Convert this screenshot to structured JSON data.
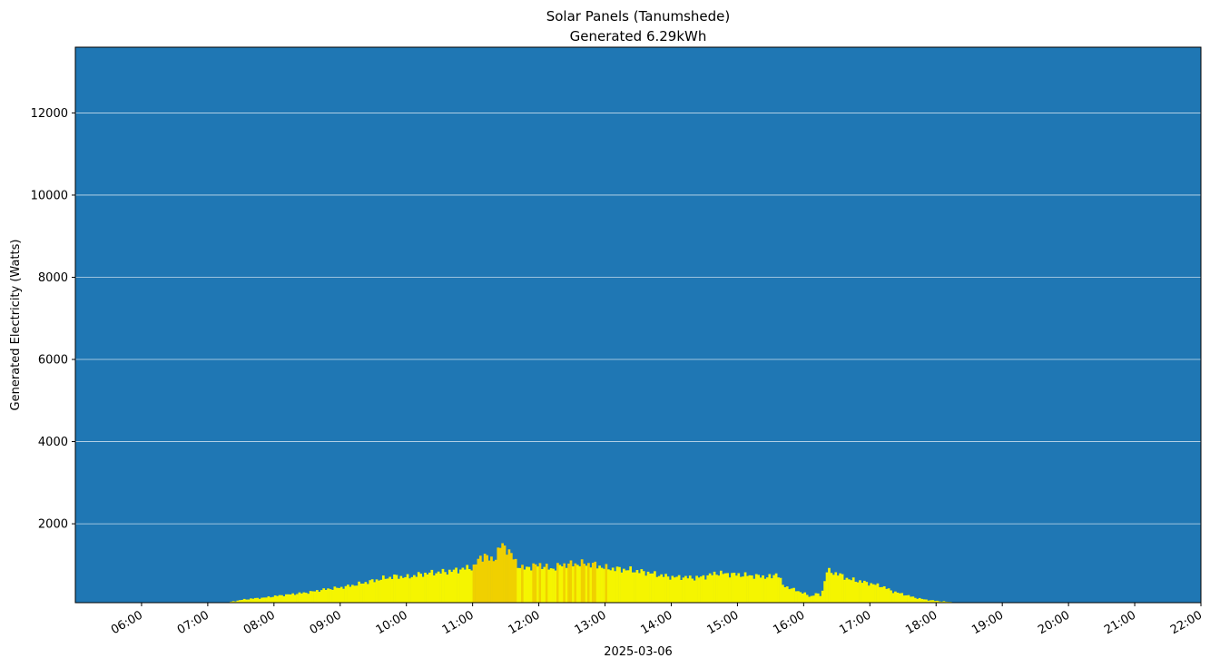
{
  "chart_data": {
    "type": "bar",
    "title": "Solar Panels (Tanumshede)",
    "subtitle": "Generated 6.29kWh",
    "xlabel": "2025-03-06",
    "ylabel": "Generated Electricity (Watts)",
    "ylim": [
      80,
      13600
    ],
    "xlim": [
      "05:00",
      "22:00"
    ],
    "yticks": [
      2000,
      4000,
      6000,
      8000,
      10000,
      12000
    ],
    "xticks": [
      "06:00",
      "07:00",
      "08:00",
      "09:00",
      "10:00",
      "11:00",
      "12:00",
      "13:00",
      "14:00",
      "15:00",
      "16:00",
      "17:00",
      "18:00",
      "19:00",
      "20:00",
      "21:00",
      "22:00"
    ],
    "grid": "horizontal",
    "colors": {
      "background": "#1f77b4",
      "bar_low": "#f5f500",
      "bar_high": "#f0d000",
      "grid": "#ffffff"
    },
    "interval_minutes": 2,
    "x": [
      "07:20",
      "07:30",
      "07:40",
      "07:50",
      "08:00",
      "08:10",
      "08:20",
      "08:30",
      "08:40",
      "08:50",
      "09:00",
      "09:10",
      "09:20",
      "09:30",
      "09:40",
      "09:50",
      "10:00",
      "10:10",
      "10:20",
      "10:30",
      "10:40",
      "10:50",
      "11:00",
      "11:05",
      "11:10",
      "11:15",
      "11:20",
      "11:25",
      "11:30",
      "11:35",
      "11:40",
      "11:45",
      "11:50",
      "12:00",
      "12:10",
      "12:20",
      "12:30",
      "12:40",
      "12:50",
      "13:00",
      "13:10",
      "13:20",
      "13:30",
      "13:40",
      "13:50",
      "14:00",
      "14:10",
      "14:20",
      "14:30",
      "14:40",
      "14:50",
      "15:00",
      "15:10",
      "15:20",
      "15:30",
      "15:35",
      "15:40",
      "15:50",
      "16:00",
      "16:05",
      "16:10",
      "16:15",
      "16:20",
      "16:30",
      "16:40",
      "16:50",
      "17:00",
      "17:10",
      "17:20",
      "17:30",
      "17:40",
      "17:50",
      "18:00",
      "18:10",
      "18:20",
      "18:25"
    ],
    "values": [
      100,
      150,
      180,
      200,
      240,
      270,
      300,
      330,
      380,
      420,
      450,
      500,
      560,
      620,
      680,
      720,
      700,
      760,
      800,
      820,
      850,
      900,
      950,
      1150,
      1250,
      1100,
      1200,
      1500,
      1400,
      1200,
      1000,
      900,
      950,
      1000,
      900,
      1000,
      1020,
      1030,
      1000,
      920,
      900,
      880,
      840,
      800,
      740,
      700,
      700,
      680,
      720,
      800,
      780,
      760,
      740,
      720,
      700,
      820,
      500,
      400,
      300,
      220,
      300,
      250,
      850,
      780,
      650,
      600,
      540,
      480,
      350,
      280,
      200,
      150,
      120,
      100,
      80,
      70
    ]
  }
}
